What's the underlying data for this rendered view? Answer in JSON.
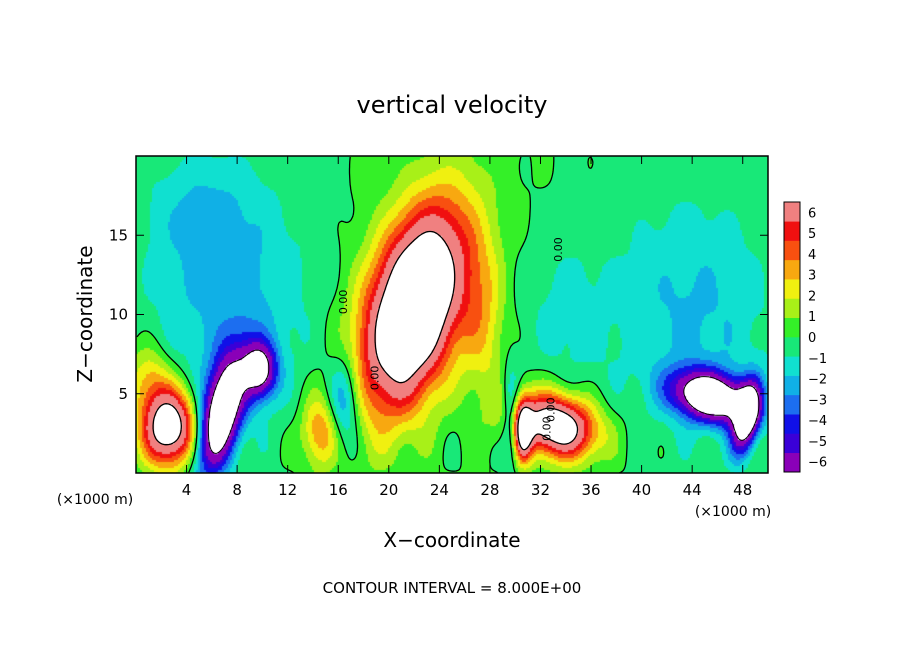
{
  "chart_data": {
    "type": "heatmap",
    "title": "vertical velocity",
    "xlabel": "X−coordinate",
    "ylabel": "Z−coordinate",
    "x_unit_left": "(×1000 m)",
    "x_unit_right": "(×1000 m)",
    "footer": "CONTOUR INTERVAL = 8.000E+00",
    "xlim": [
      0,
      50
    ],
    "ylim": [
      0,
      20
    ],
    "x_ticks": [
      4,
      8,
      12,
      16,
      20,
      24,
      28,
      32,
      36,
      40,
      44,
      48
    ],
    "x_tick_labels": [
      "4",
      "8",
      "12",
      "16",
      "20",
      "24",
      "28",
      "32",
      "36",
      "40",
      "44",
      "48"
    ],
    "y_ticks": [
      5,
      10,
      15
    ],
    "y_tick_labels": [
      "5",
      "10",
      "15"
    ],
    "colorbar": {
      "levels": [
        -6,
        -5,
        -4,
        -3,
        -2,
        -1,
        0,
        1,
        2,
        3,
        4,
        5,
        6
      ],
      "labels": [
        "−6",
        "−5",
        "−4",
        "−3",
        "−2",
        "−1",
        "0",
        "1",
        "2",
        "3",
        "4",
        "5",
        "6"
      ],
      "colors": [
        "#8a00b8",
        "#3a00d8",
        "#1010e8",
        "#1c6ef0",
        "#10b0e6",
        "#10e0d0",
        "#18e878",
        "#34f028",
        "#a8f018",
        "#f0f010",
        "#f8a810",
        "#f85010",
        "#f01010",
        "#f08080"
      ]
    },
    "contour_labels": [
      "0.00",
      "0.00",
      "0.00",
      "0.00",
      "0.00"
    ],
    "features": [
      {
        "name": "main-updraft",
        "x": 22,
        "z": 10.5,
        "sx": 2.6,
        "sz": 4.4,
        "tilt": 0.28,
        "w": 14
      },
      {
        "name": "updraft-left",
        "x": 2.6,
        "z": 2.9,
        "sx": 1.5,
        "sz": 1.7,
        "tilt": 0,
        "w": 11
      },
      {
        "name": "updraft-right-a",
        "x": 33.2,
        "z": 3.0,
        "sx": 2.2,
        "sz": 1.4,
        "tilt": -0.3,
        "w": 11
      },
      {
        "name": "updraft-right-b",
        "x": 30.6,
        "z": 2.6,
        "sx": 0.5,
        "sz": 1.3,
        "tilt": 0,
        "w": 8
      },
      {
        "name": "updraft-mid",
        "x": 14.5,
        "z": 2.6,
        "sx": 1.0,
        "sz": 1.6,
        "tilt": 0,
        "w": 4
      },
      {
        "name": "updraft-column",
        "x": 27.5,
        "z": 9.5,
        "sx": 1.2,
        "sz": 3.5,
        "tilt": 0,
        "w": 2.5
      },
      {
        "name": "downdraft-a",
        "x": 6.8,
        "z": 3.8,
        "sx": 1.1,
        "sz": 2.6,
        "tilt": 0.25,
        "w": -12
      },
      {
        "name": "downdraft-b",
        "x": 9.8,
        "z": 6.5,
        "sx": 0.9,
        "sz": 1.2,
        "tilt": 0,
        "w": -9
      },
      {
        "name": "downdraft-c",
        "x": 45.5,
        "z": 4.8,
        "sx": 2.0,
        "sz": 1.1,
        "tilt": -0.5,
        "w": -12
      },
      {
        "name": "downdraft-d",
        "x": 48.3,
        "z": 3.5,
        "sx": 0.7,
        "sz": 1.5,
        "tilt": 0.2,
        "w": -11
      },
      {
        "name": "downdraft-e",
        "x": 16.5,
        "z": 4.5,
        "sx": 0.9,
        "sz": 2.0,
        "tilt": 0,
        "w": -4
      },
      {
        "name": "downdraft-f",
        "x": 29.7,
        "z": 3.5,
        "sx": 0.5,
        "sz": 2.0,
        "tilt": 0,
        "w": -4
      },
      {
        "name": "downdraft-broad-left",
        "x": 7.5,
        "z": 11,
        "sx": 4.5,
        "sz": 5.5,
        "tilt": 0,
        "w": -2.4
      },
      {
        "name": "downdraft-broad-right",
        "x": 44,
        "z": 10,
        "sx": 4.5,
        "sz": 5.5,
        "tilt": 0,
        "w": -2.2
      },
      {
        "name": "weak-down-top-left",
        "x": 5,
        "z": 16.5,
        "sx": 3,
        "sz": 2.5,
        "tilt": 0,
        "w": -1.3
      },
      {
        "name": "weak-down-right-mid",
        "x": 34,
        "z": 10,
        "sx": 2.5,
        "sz": 3.5,
        "tilt": 0,
        "w": -1.3
      },
      {
        "name": "weak-up-left-low",
        "x": 1,
        "z": 6,
        "sx": 1.2,
        "sz": 1.5,
        "tilt": 0,
        "w": 3
      }
    ]
  }
}
